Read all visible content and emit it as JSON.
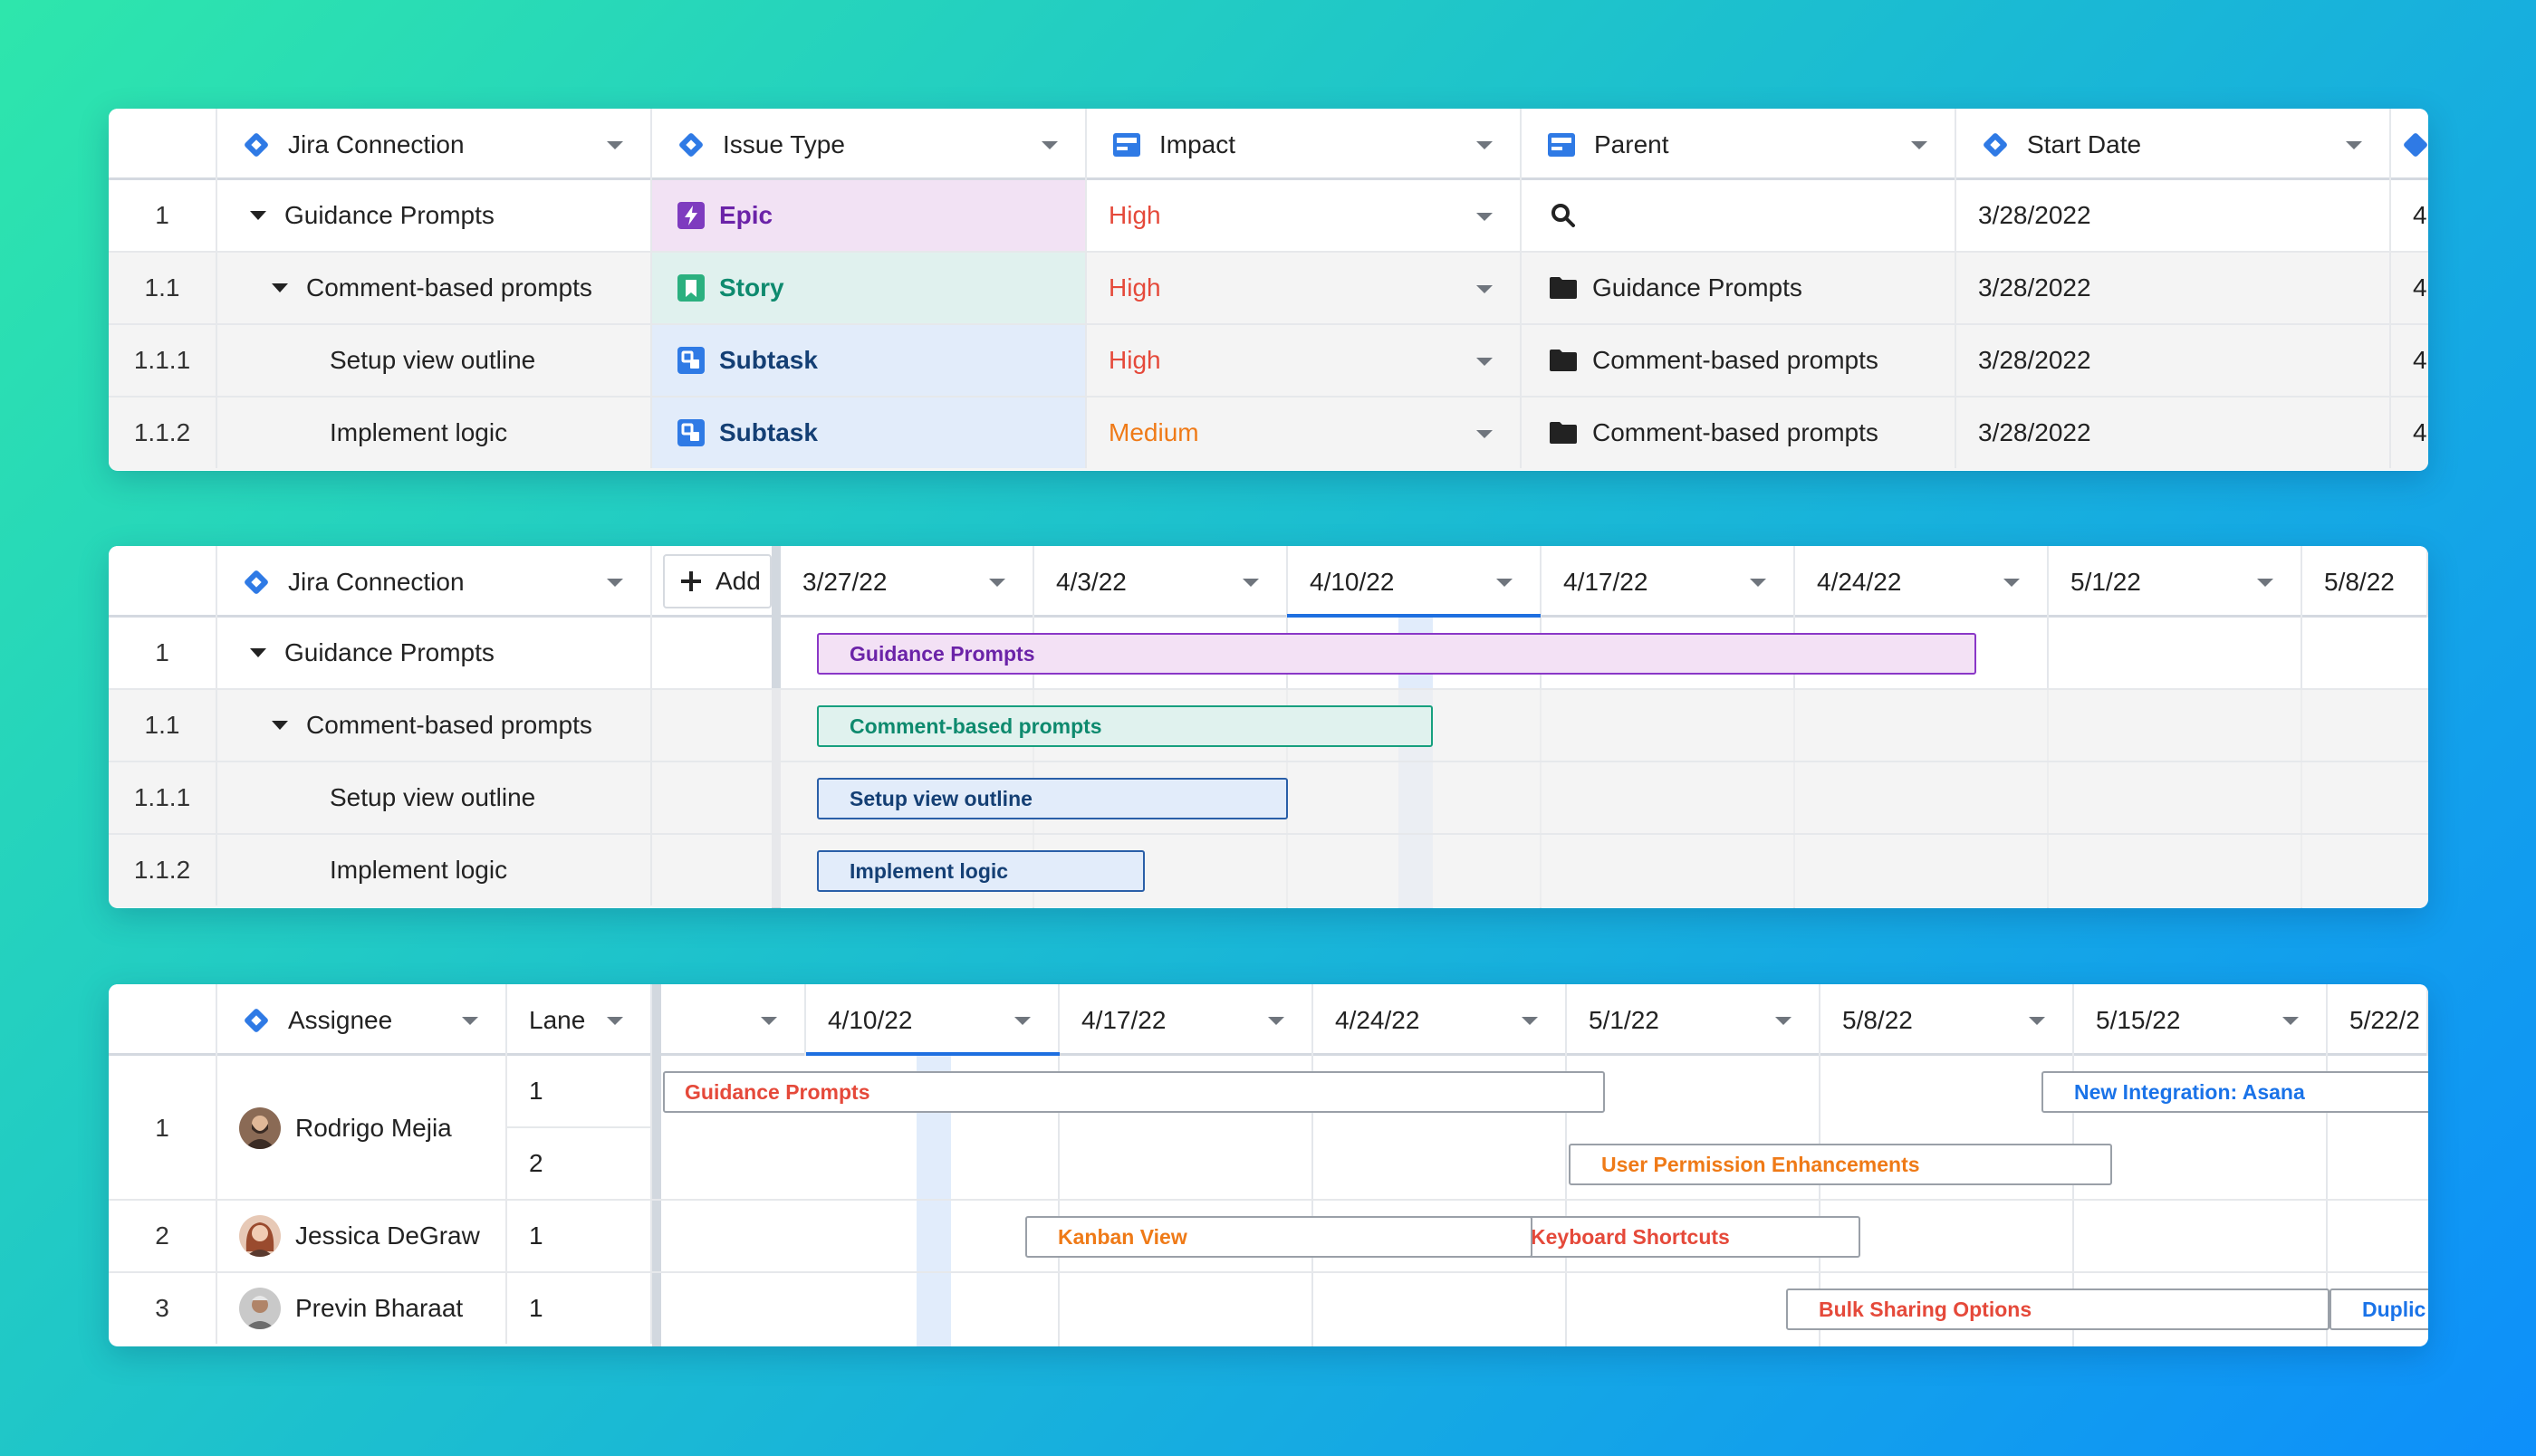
{
  "colors": {
    "epic": "#6b23a8",
    "story": "#0e8a6e",
    "subtask": "#143f74",
    "high": "#e5493a",
    "medium": "#ef7a17",
    "accent": "#1e6fe0",
    "blue_link": "#1a73e8"
  },
  "table1": {
    "headers": [
      "Jira Connection",
      "Issue Type",
      "Impact",
      "Parent",
      "Start Date"
    ],
    "partial_col_values": [
      "4",
      "4",
      "4",
      "4"
    ],
    "rows": [
      {
        "num": "1",
        "name": "Guidance Prompts",
        "type": "Epic",
        "impact": "High",
        "parent": "",
        "start": "3/28/2022"
      },
      {
        "num": "1.1",
        "name": "Comment-based prompts",
        "type": "Story",
        "impact": "High",
        "parent": "Guidance Prompts",
        "start": "3/28/2022"
      },
      {
        "num": "1.1.1",
        "name": "Setup view outline",
        "type": "Subtask",
        "impact": "High",
        "parent": "Comment-based prompts",
        "start": "3/28/2022"
      },
      {
        "num": "1.1.2",
        "name": "Implement logic",
        "type": "Subtask",
        "impact": "Medium",
        "parent": "Comment-based prompts",
        "start": "3/28/2022"
      }
    ]
  },
  "gantt1": {
    "header": "Jira Connection",
    "add_label": "Add",
    "dates": [
      "3/27/22",
      "4/3/22",
      "4/10/22",
      "4/17/22",
      "4/24/22",
      "5/1/22",
      "5/8/22"
    ],
    "rows": [
      {
        "num": "1",
        "name": "Guidance Prompts"
      },
      {
        "num": "1.1",
        "name": "Comment-based prompts"
      },
      {
        "num": "1.1.1",
        "name": "Setup view outline"
      },
      {
        "num": "1.1.2",
        "name": "Implement logic"
      }
    ],
    "bars": [
      {
        "label": "Guidance Prompts",
        "start": "3/28/22",
        "end": "4/29/22",
        "kind": "epic"
      },
      {
        "label": "Comment-based prompts",
        "start": "3/28/22",
        "end": "4/14/22",
        "kind": "story"
      },
      {
        "label": "Setup view outline",
        "start": "3/28/22",
        "end": "4/10/22",
        "kind": "subtask"
      },
      {
        "label": "Implement logic",
        "start": "3/28/22",
        "end": "4/6/22",
        "kind": "subtask"
      }
    ]
  },
  "gantt2": {
    "headers": [
      "Assignee",
      "Lane"
    ],
    "dates": [
      "4/10/22",
      "4/17/22",
      "4/24/22",
      "5/1/22",
      "5/8/22",
      "5/15/22",
      "5/22/2"
    ],
    "people": [
      {
        "num": "1",
        "name": "Rodrigo Mejia",
        "lanes": [
          "1",
          "2"
        ]
      },
      {
        "num": "2",
        "name": "Jessica DeGraw",
        "lanes": [
          "1"
        ]
      },
      {
        "num": "3",
        "name": "Previn Bharaat",
        "lanes": [
          "1"
        ]
      }
    ],
    "bars": [
      {
        "label": "Guidance Prompts",
        "color": "red"
      },
      {
        "label": "New Integration: Asana",
        "color": "blue"
      },
      {
        "label": "User Permission Enhancements",
        "color": "orange"
      },
      {
        "label": "Keyboard Shortcuts",
        "color": "red"
      },
      {
        "label": "Kanban View",
        "color": "orange"
      },
      {
        "label": "Bulk Sharing Options",
        "color": "red"
      },
      {
        "label": "Duplic",
        "color": "blue"
      }
    ]
  }
}
